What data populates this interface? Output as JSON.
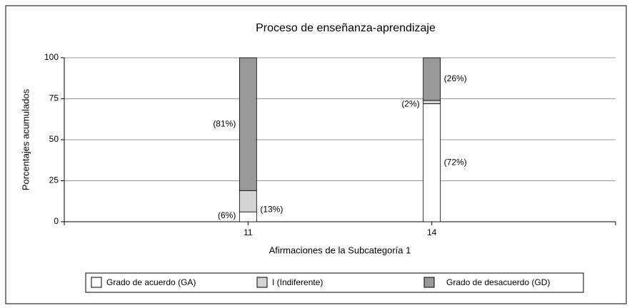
{
  "chart_data": {
    "type": "stacked_bar",
    "title": "Proceso de enseñanza-aprendizaje",
    "x_label": "Afirmaciones de la Subcategoría 1",
    "y_label": "Porcentajes acumulados",
    "categories": [
      "11",
      "14"
    ],
    "series": [
      {
        "name": "Grado de acuerdo (GA)",
        "color": "#ffffff",
        "values": [
          6,
          72
        ],
        "value_labels": [
          "(6%)",
          "(72%)"
        ]
      },
      {
        "name": "I (Indiferente)",
        "color": "#d4d4d4",
        "values": [
          13,
          2
        ],
        "value_labels": [
          "(13%)",
          "(2%)"
        ]
      },
      {
        "name": "Grado de desacuerdo (GD)",
        "color": "#999999",
        "values": [
          81,
          26
        ],
        "value_labels": [
          "(81%)",
          "(26%)"
        ]
      }
    ],
    "ylim": [
      0,
      100
    ],
    "yticks": [
      0,
      25,
      50,
      75,
      100
    ],
    "grid": true,
    "legend": "bottom"
  }
}
